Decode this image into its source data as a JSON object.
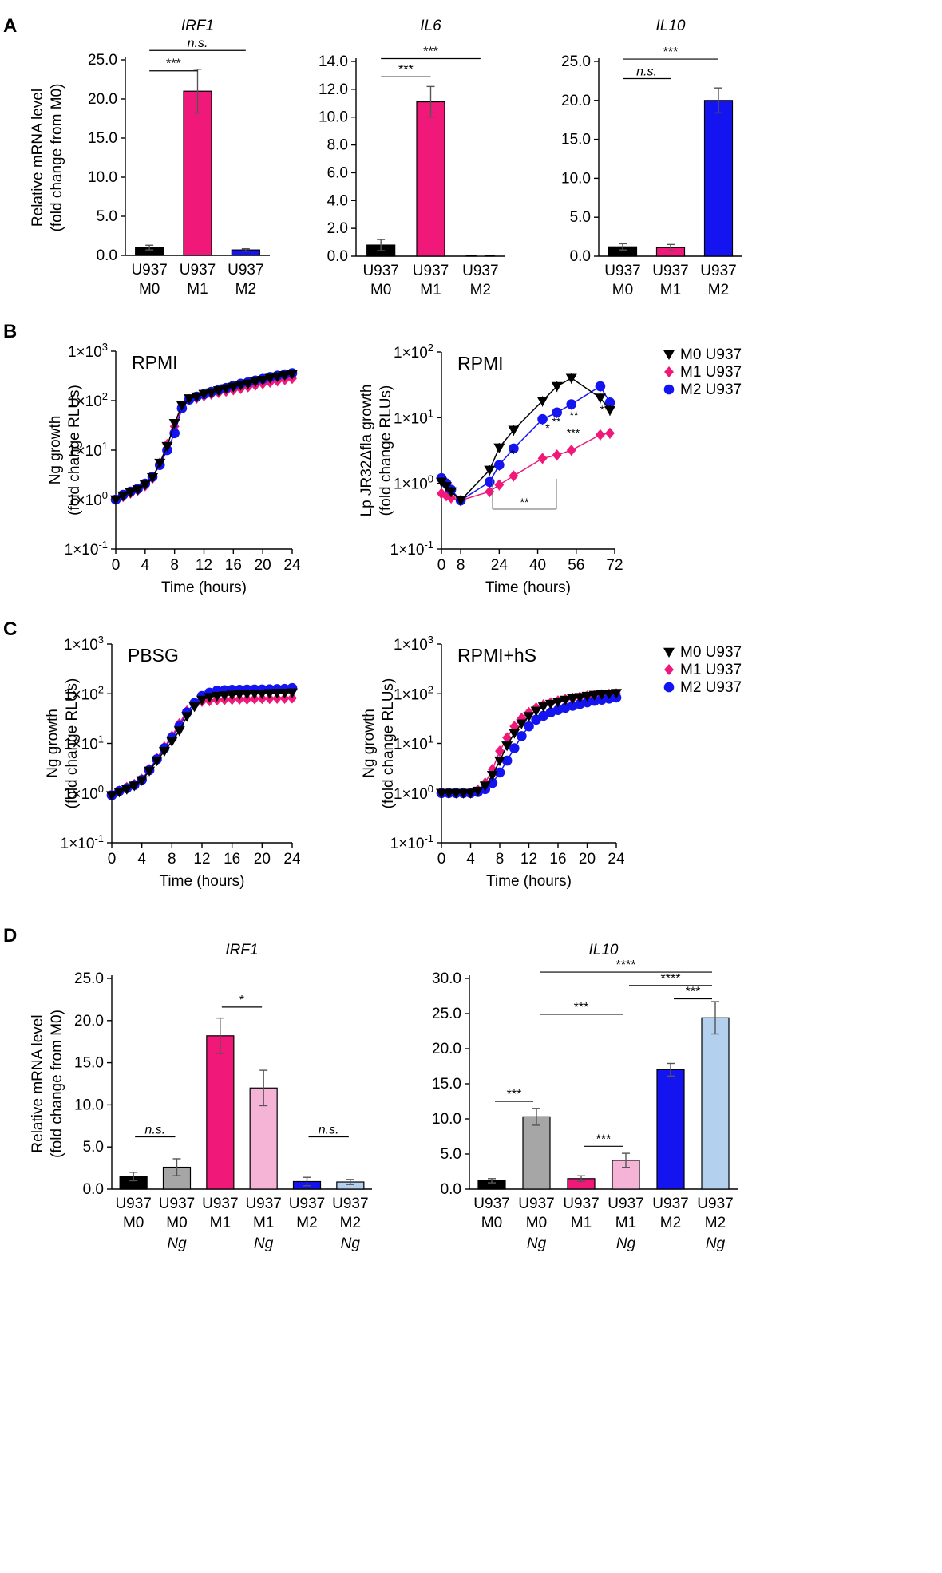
{
  "colors": {
    "black": "#000000",
    "gray": "#a6a6a6",
    "magenta": "#f0197a",
    "pink": "#f5b3d6",
    "blue": "#1414f0",
    "lightblue": "#b3d1ee"
  },
  "panel_labels": [
    "A",
    "B",
    "C",
    "D"
  ],
  "shared": {
    "mrna_ylabel": [
      "Relative mRNA level",
      "(fold change from M0)"
    ],
    "ng_ylabel": [
      "Ng growth",
      "(fold change RLUs)"
    ],
    "lp_ylabel": [
      "Lp JR32Δfla growth",
      "(fold change RLUs)"
    ],
    "xlabel_time": "Time (hours)",
    "legend": [
      "M0 U937",
      "M1 U937",
      "M2 U937"
    ]
  },
  "chart_data": [
    {
      "id": "A_IRF1",
      "type": "bar",
      "title": "IRF1",
      "categories": [
        [
          "U937",
          "M0"
        ],
        [
          "U937",
          "M1"
        ],
        [
          "U937",
          "M2"
        ]
      ],
      "values": [
        1.0,
        21.0,
        0.7
      ],
      "errors": [
        0.3,
        2.8,
        0.15
      ],
      "ylim": [
        0,
        25
      ],
      "yticks": [
        0,
        5,
        10,
        15,
        20,
        25
      ],
      "tick_labels": [
        "0.0",
        "5.0",
        "10.0",
        "15.0",
        "20.0",
        "25.0"
      ],
      "sig": [
        {
          "from": 0,
          "to": 1,
          "level": 23.6,
          "label": "***"
        },
        {
          "from": 0,
          "to": 2,
          "level": 26.2,
          "label": "n.s."
        }
      ]
    },
    {
      "id": "A_IL6",
      "type": "bar",
      "title": "IL6",
      "categories": [
        [
          "U937",
          "M0"
        ],
        [
          "U937",
          "M1"
        ],
        [
          "U937",
          "M2"
        ]
      ],
      "values": [
        0.8,
        11.1,
        0.05
      ],
      "errors": [
        0.4,
        1.1,
        0.02
      ],
      "ylim": [
        0,
        14
      ],
      "yticks": [
        0,
        2,
        4,
        6,
        8,
        10,
        12,
        14
      ],
      "tick_labels": [
        "0.0",
        "2.0",
        "4.0",
        "6.0",
        "8.0",
        "10.0",
        "12.0",
        "14.0"
      ],
      "sig": [
        {
          "from": 0,
          "to": 1,
          "level": 12.9,
          "label": "***"
        },
        {
          "from": 0,
          "to": 2,
          "level": 14.2,
          "label": "***"
        }
      ]
    },
    {
      "id": "A_IL10",
      "type": "bar",
      "title": "IL10",
      "categories": [
        [
          "U937",
          "M0"
        ],
        [
          "U937",
          "M1"
        ],
        [
          "U937",
          "M2"
        ]
      ],
      "values": [
        1.2,
        1.1,
        20.0
      ],
      "errors": [
        0.4,
        0.4,
        1.6
      ],
      "ylim": [
        0,
        25
      ],
      "yticks": [
        0,
        5,
        10,
        15,
        20,
        25
      ],
      "tick_labels": [
        "0.0",
        "5.0",
        "10.0",
        "15.0",
        "20.0",
        "25.0"
      ],
      "sig": [
        {
          "from": 0,
          "to": 1,
          "level": 22.8,
          "label": "n.s."
        },
        {
          "from": 0,
          "to": 2,
          "level": 25.3,
          "label": "***"
        }
      ]
    },
    {
      "id": "B_RPMI_Ng",
      "type": "line",
      "title": "RPMI",
      "xlim": [
        0,
        24
      ],
      "xticks": [
        0,
        4,
        8,
        12,
        16,
        20,
        24
      ],
      "ylim_log10": [
        -1,
        3
      ],
      "x": [
        0,
        1,
        2,
        3,
        4,
        5,
        6,
        7,
        8,
        9,
        10,
        11,
        12,
        13,
        14,
        15,
        16,
        17,
        18,
        19,
        20,
        21,
        22,
        23,
        24
      ],
      "series": [
        {
          "name": "M0 U937",
          "values": [
            1,
            1.2,
            1.4,
            1.6,
            2,
            2.8,
            5.5,
            12,
            35,
            80,
            110,
            120,
            135,
            145,
            160,
            175,
            190,
            205,
            220,
            240,
            260,
            285,
            305,
            325,
            345
          ]
        },
        {
          "name": "M1 U937",
          "values": [
            1,
            1.15,
            1.35,
            1.55,
            1.9,
            2.7,
            5.5,
            13,
            30,
            75,
            105,
            112,
            125,
            135,
            145,
            155,
            165,
            175,
            190,
            205,
            220,
            235,
            250,
            265,
            280
          ]
        },
        {
          "name": "M2 U937",
          "values": [
            1,
            1.25,
            1.45,
            1.65,
            2.1,
            2.9,
            5,
            10,
            22,
            70,
            105,
            120,
            135,
            150,
            165,
            180,
            200,
            220,
            235,
            255,
            275,
            300,
            320,
            340,
            360
          ]
        }
      ]
    },
    {
      "id": "B_RPMI_Lp",
      "type": "line",
      "title": "RPMI",
      "xlim": [
        0,
        72
      ],
      "xticks": [
        0,
        8,
        24,
        40,
        56,
        72
      ],
      "ylim_log10": [
        -1,
        2
      ],
      "x": [
        0,
        2,
        4,
        8,
        20,
        24,
        30,
        42,
        48,
        54,
        66,
        70
      ],
      "series": [
        {
          "name": "M0 U937",
          "x": [
            0,
            2,
            4,
            8,
            20,
            24,
            30,
            42,
            48,
            54,
            66,
            70
          ],
          "values": [
            1.05,
            0.9,
            0.75,
            0.55,
            1.6,
            3.5,
            6.5,
            18,
            30,
            40,
            20,
            13
          ]
        },
        {
          "name": "M1 U937",
          "x": [
            0,
            2,
            4,
            8,
            20,
            24,
            30,
            42,
            48,
            54,
            66,
            70
          ],
          "values": [
            0.7,
            0.65,
            0.6,
            0.55,
            0.75,
            0.95,
            1.3,
            2.4,
            2.7,
            3.2,
            5.5,
            5.8
          ]
        },
        {
          "name": "M2 U937",
          "x": [
            0,
            2,
            4,
            8,
            20,
            24,
            30,
            42,
            48,
            54,
            66,
            70
          ],
          "values": [
            1.2,
            1.0,
            0.8,
            0.55,
            1.05,
            1.9,
            3.4,
            9.5,
            12,
            16,
            30,
            17
          ]
        }
      ],
      "annotations": [
        "*",
        "**",
        "**",
        "*",
        "**",
        "***",
        "**",
        "**"
      ]
    },
    {
      "id": "C_PBSG",
      "type": "line",
      "title": "PBSG",
      "xlim": [
        0,
        24
      ],
      "xticks": [
        0,
        4,
        8,
        12,
        16,
        20,
        24
      ],
      "ylim_log10": [
        -1,
        3
      ],
      "x": [
        0,
        1,
        2,
        3,
        4,
        5,
        6,
        7,
        8,
        9,
        10,
        11,
        12,
        13,
        14,
        15,
        16,
        17,
        18,
        19,
        20,
        21,
        22,
        23,
        24
      ],
      "series": [
        {
          "name": "M0 U937",
          "values": [
            0.9,
            1.05,
            1.2,
            1.4,
            1.8,
            2.8,
            4.5,
            7,
            11,
            18,
            35,
            55,
            75,
            85,
            90,
            92,
            95,
            97,
            98,
            100,
            100,
            102,
            103,
            104,
            105
          ]
        },
        {
          "name": "M1 U937",
          "values": [
            0.9,
            1.1,
            1.3,
            1.5,
            1.9,
            3,
            5,
            8.5,
            14,
            25,
            45,
            60,
            70,
            72,
            75,
            76,
            77,
            78,
            78,
            79,
            80,
            80,
            81,
            81,
            82
          ]
        },
        {
          "name": "M2 U937",
          "values": [
            0.9,
            1.1,
            1.25,
            1.45,
            1.85,
            2.9,
            4.8,
            8,
            13,
            22,
            42,
            65,
            90,
            105,
            115,
            118,
            120,
            120,
            121,
            122,
            122,
            123,
            124,
            125,
            130
          ]
        }
      ]
    },
    {
      "id": "C_RPMI_hS",
      "type": "line",
      "title": "RPMI+hS",
      "xlim": [
        0,
        24
      ],
      "xticks": [
        0,
        4,
        8,
        12,
        16,
        20,
        24
      ],
      "ylim_log10": [
        -1,
        3
      ],
      "x": [
        0,
        1,
        2,
        3,
        4,
        5,
        6,
        7,
        8,
        9,
        10,
        11,
        12,
        13,
        14,
        15,
        16,
        17,
        18,
        19,
        20,
        21,
        22,
        23,
        24
      ],
      "series": [
        {
          "name": "M0 U937",
          "values": [
            1,
            1,
            1,
            1,
            1,
            1.1,
            1.4,
            2.3,
            4.5,
            9,
            16,
            25,
            35,
            45,
            55,
            62,
            68,
            75,
            80,
            85,
            90,
            94,
            97,
            100,
            103
          ]
        },
        {
          "name": "M1 U937",
          "values": [
            1,
            1,
            1,
            1,
            1,
            1.15,
            1.6,
            3,
            7,
            13,
            22,
            32,
            42,
            52,
            60,
            66,
            72,
            77,
            82,
            86,
            90,
            93,
            96,
            98,
            100
          ]
        },
        {
          "name": "M2 U937",
          "values": [
            1,
            1,
            1,
            1,
            1,
            1.05,
            1.2,
            1.6,
            2.6,
            4.5,
            8,
            14,
            22,
            30,
            36,
            42,
            47,
            52,
            57,
            62,
            67,
            72,
            76,
            80,
            84
          ]
        }
      ]
    },
    {
      "id": "D_IRF1",
      "type": "bar",
      "title": "IRF1",
      "categories": [
        [
          "U937",
          "M0",
          ""
        ],
        [
          "U937",
          "M0",
          "Ng"
        ],
        [
          "U937",
          "M1",
          ""
        ],
        [
          "U937",
          "M1",
          "Ng"
        ],
        [
          "U937",
          "M2",
          ""
        ],
        [
          "U937",
          "M2",
          "Ng"
        ]
      ],
      "values": [
        1.5,
        2.6,
        18.2,
        12.0,
        0.9,
        0.85
      ],
      "errors": [
        0.5,
        1.0,
        2.1,
        2.1,
        0.5,
        0.3
      ],
      "ylim": [
        0,
        25
      ],
      "yticks": [
        0,
        5,
        10,
        15,
        20,
        25
      ],
      "tick_labels": [
        "0.0",
        "5.0",
        "10.0",
        "15.0",
        "20.0",
        "25.0"
      ],
      "sig": [
        {
          "from": 0,
          "to": 1,
          "level": 6.2,
          "label": "n.s."
        },
        {
          "from": 2,
          "to": 3,
          "level": 21.6,
          "label": "*"
        },
        {
          "from": 4,
          "to": 5,
          "level": 6.2,
          "label": "n.s."
        }
      ]
    },
    {
      "id": "D_IL10",
      "type": "bar",
      "title": "IL10",
      "categories": [
        [
          "U937",
          "M0",
          ""
        ],
        [
          "U937",
          "M0",
          "Ng"
        ],
        [
          "U937",
          "M1",
          ""
        ],
        [
          "U937",
          "M1",
          "Ng"
        ],
        [
          "U937",
          "M2",
          ""
        ],
        [
          "U937",
          "M2",
          "Ng"
        ]
      ],
      "values": [
        1.2,
        10.3,
        1.5,
        4.1,
        17.0,
        24.4
      ],
      "errors": [
        0.3,
        1.2,
        0.4,
        1.0,
        0.9,
        2.3
      ],
      "ylim": [
        0,
        30
      ],
      "yticks": [
        0,
        5,
        10,
        15,
        20,
        25,
        30
      ],
      "tick_labels": [
        "0.0",
        "5.0",
        "10.0",
        "15.0",
        "20.0",
        "25.0",
        "30.0"
      ],
      "sig": [
        {
          "from": 0,
          "to": 1,
          "level": 12.5,
          "label": "***"
        },
        {
          "from": 2,
          "to": 3,
          "level": 6.1,
          "label": "***"
        },
        {
          "from": 1,
          "to": 3,
          "level": 24.9,
          "label": "***"
        },
        {
          "from": 4,
          "to": 5,
          "level": 27.1,
          "label": "***"
        },
        {
          "from": 3,
          "to": 5,
          "level": 29.0,
          "label": "****"
        },
        {
          "from": 1,
          "to": 5,
          "level": 30.9,
          "label": "****"
        }
      ]
    }
  ]
}
